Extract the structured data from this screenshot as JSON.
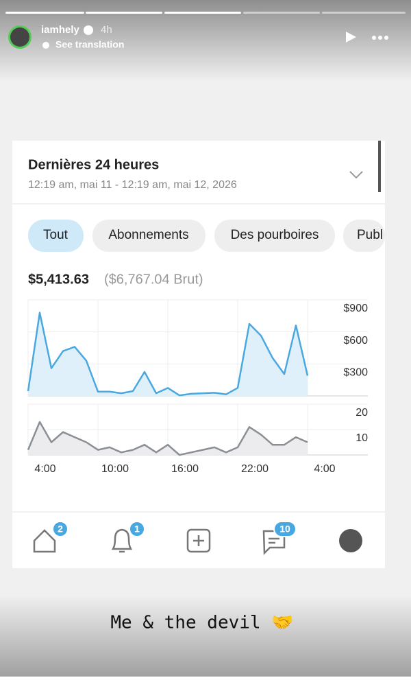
{
  "story": {
    "username": "iamhely",
    "time": "4h",
    "see_translation": "See translation",
    "caption": "Me & the devil 🤝"
  },
  "card": {
    "title": "Dernières 24 heures",
    "subtitle": "12:19 am, mai 11 - 12:19 am, mai 12, 2026",
    "filters": [
      "Tout",
      "Abonnements",
      "Des pourboires",
      "Publ"
    ],
    "net": "$5,413.63",
    "gross": "($6,767.04 Brut)"
  },
  "chart_data": [
    {
      "type": "line",
      "color": "#4aa8e0",
      "fill": "#dff0fa",
      "values": [
        45,
        780,
        260,
        420,
        460,
        330,
        40,
        40,
        25,
        45,
        225,
        25,
        75,
        5,
        20,
        25,
        30,
        15,
        75,
        675,
        565,
        355,
        205,
        660,
        190
      ],
      "ylim": [
        0,
        900
      ],
      "yticks": [
        {
          "value": 300,
          "label": "$300"
        },
        {
          "value": 600,
          "label": "$600"
        },
        {
          "value": 900,
          "label": "$900"
        }
      ],
      "grid": true
    },
    {
      "type": "line",
      "color": "#8a8f96",
      "fill": "#ececee",
      "categories": [
        "4:00",
        null,
        null,
        null,
        null,
        null,
        "10:00",
        null,
        null,
        null,
        null,
        null,
        "16:00",
        null,
        null,
        null,
        null,
        null,
        "22:00",
        null,
        null,
        null,
        null,
        null,
        "4:00"
      ],
      "values": [
        2,
        13,
        5,
        9,
        7,
        5,
        2,
        3,
        1,
        2,
        4,
        1,
        4,
        0,
        1,
        2,
        3,
        1,
        3,
        11,
        8,
        4,
        4,
        7,
        5
      ],
      "ylim": [
        0,
        20
      ],
      "yticks": [
        10,
        20
      ],
      "grid": true
    }
  ],
  "nav": {
    "badges": [
      2,
      1,
      10
    ]
  }
}
